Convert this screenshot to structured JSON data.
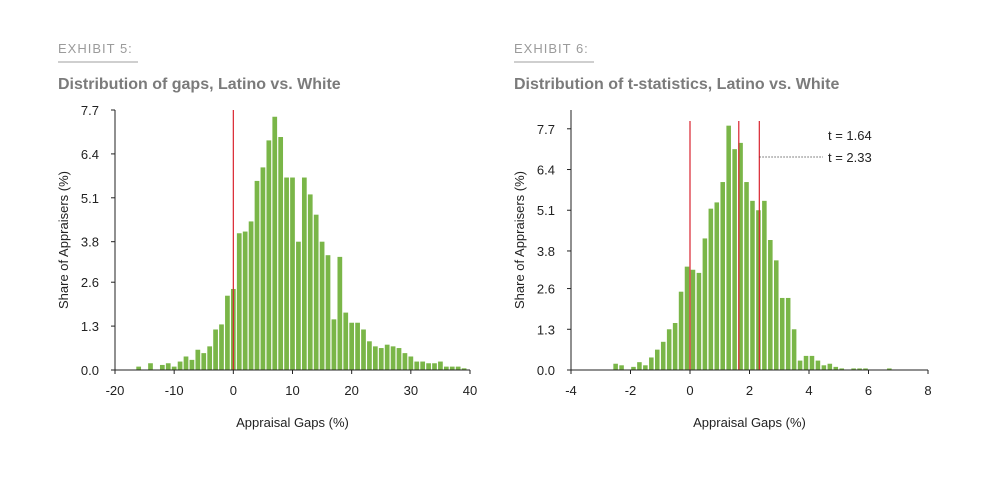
{
  "colors": {
    "bar": "#7ab648",
    "reference_line": "#d9232e",
    "axis": "#222222"
  },
  "chart_data": [
    {
      "type": "bar",
      "label": "EXHIBIT 5:",
      "title": "Distribution of gaps, Latino vs. White",
      "xlabel": "Appraisal Gaps (%)",
      "ylabel": "Share of Appraisers (%)",
      "xlim": [
        -20,
        40
      ],
      "ylim": [
        0,
        7.7
      ],
      "xticks": [
        -20,
        -10,
        0,
        10,
        20,
        30,
        40
      ],
      "yticks": [
        "0.0",
        "1.3",
        "2.6",
        "3.8",
        "5.1",
        "6.4",
        "7.7"
      ],
      "bin_width": 1,
      "x": [
        -16,
        -15,
        -14,
        -13,
        -12,
        -11,
        -10,
        -9,
        -8,
        -7,
        -6,
        -5,
        -4,
        -3,
        -2,
        -1,
        0,
        1,
        2,
        3,
        4,
        5,
        6,
        7,
        8,
        9,
        10,
        11,
        12,
        13,
        14,
        15,
        16,
        17,
        18,
        19,
        20,
        21,
        22,
        23,
        24,
        25,
        26,
        27,
        28,
        29,
        30,
        31,
        32,
        33,
        34,
        35,
        36,
        37,
        38,
        39
      ],
      "values": [
        0.1,
        0,
        0.2,
        0,
        0.15,
        0.2,
        0.1,
        0.25,
        0.4,
        0.3,
        0.6,
        0.5,
        0.7,
        1.2,
        1.35,
        2.2,
        2.4,
        4.05,
        4.1,
        4.4,
        5.6,
        6.0,
        6.8,
        7.5,
        6.9,
        5.7,
        5.7,
        3.8,
        5.7,
        5.2,
        4.6,
        3.8,
        3.4,
        1.5,
        3.35,
        1.7,
        1.4,
        1.4,
        1.2,
        0.85,
        0.7,
        0.65,
        0.75,
        0.7,
        0.65,
        0.5,
        0.4,
        0.25,
        0.25,
        0.2,
        0.2,
        0.25,
        0.1,
        0.1,
        0.1,
        0.05
      ],
      "reference_lines": [
        0
      ]
    },
    {
      "type": "bar",
      "label": "EXHIBIT 6:",
      "title": "Distribution of t-statistics, Latino vs. White",
      "xlabel": "Appraisal Gaps (%)",
      "ylabel": "Share of Appraisers (%)",
      "xlim": [
        -4,
        8
      ],
      "ylim": [
        0,
        8.3
      ],
      "xticks": [
        -4,
        -2,
        0,
        2,
        4,
        6,
        8
      ],
      "yticks": [
        "0.0",
        "1.3",
        "2.6",
        "3.8",
        "5.1",
        "6.4",
        "7.7"
      ],
      "ytick_values": [
        0,
        1.3,
        2.6,
        3.8,
        5.1,
        6.4,
        7.7
      ],
      "bin_width": 0.2,
      "x": [
        -2.5,
        -2.3,
        -2.1,
        -1.9,
        -1.7,
        -1.5,
        -1.3,
        -1.1,
        -0.9,
        -0.7,
        -0.5,
        -0.3,
        -0.1,
        0.1,
        0.3,
        0.5,
        0.7,
        0.9,
        1.1,
        1.3,
        1.5,
        1.7,
        1.9,
        2.1,
        2.3,
        2.5,
        2.7,
        2.9,
        3.1,
        3.3,
        3.5,
        3.7,
        3.9,
        4.1,
        4.3,
        4.5,
        4.7,
        4.9,
        5.1,
        5.3,
        5.5,
        5.7,
        5.9,
        6.1,
        6.3,
        6.5,
        6.7
      ],
      "values": [
        0.2,
        0.15,
        0,
        0.1,
        0.25,
        0.15,
        0.4,
        0.65,
        0.9,
        1.3,
        1.5,
        2.5,
        3.3,
        3.2,
        3.1,
        4.2,
        5.15,
        5.35,
        6.0,
        7.8,
        7.05,
        7.25,
        6.0,
        5.4,
        5.1,
        5.4,
        4.15,
        3.5,
        2.3,
        2.3,
        1.3,
        0.3,
        0.45,
        0.45,
        0.3,
        0.15,
        0.2,
        0.1,
        0.05,
        0,
        0.05,
        0.05,
        0.05,
        0,
        0,
        0,
        0.05
      ],
      "reference_lines": [
        0,
        1.64,
        2.33
      ],
      "annotations": [
        "t = 1.64",
        "t = 2.33"
      ]
    }
  ]
}
